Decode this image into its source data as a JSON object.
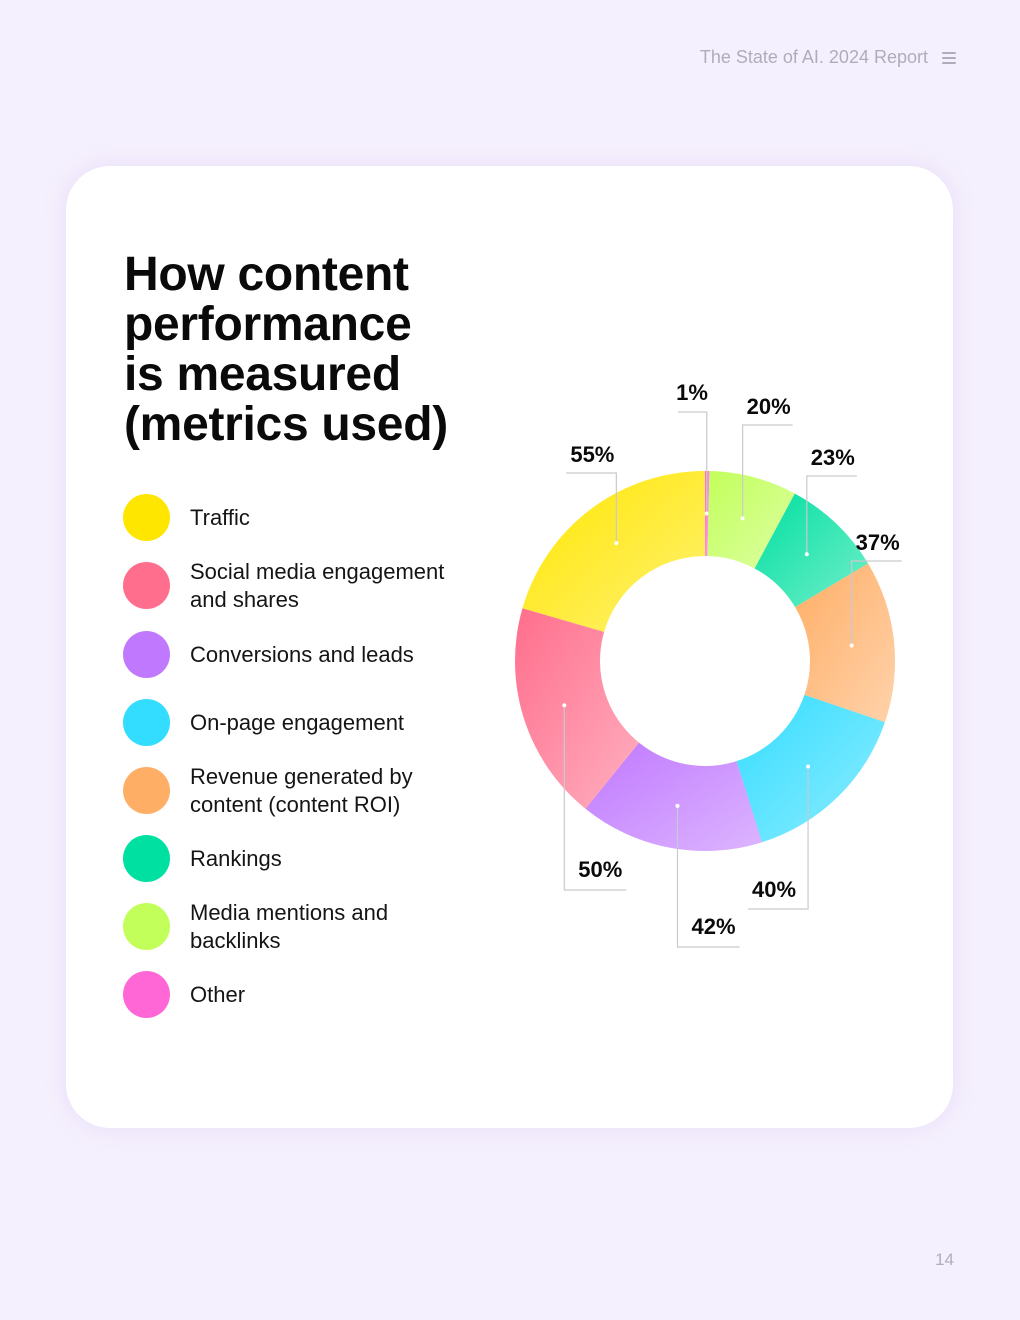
{
  "header": {
    "report_title": "The State of AI. 2024 Report"
  },
  "page_number": "14",
  "chart_data": {
    "type": "pie",
    "title": "How content performance is measured (metrics used)",
    "donut": true,
    "legend_position": "left",
    "categories": [
      "Traffic",
      "Social media engagement and shares",
      "Conversions and leads",
      "On-page engagement",
      "Revenue generated by content (content ROI)",
      "Rankings",
      "Media mentions and backlinks",
      "Other"
    ],
    "values": [
      55,
      50,
      42,
      40,
      37,
      23,
      20,
      1
    ],
    "data_labels": [
      "55%",
      "50%",
      "42%",
      "40%",
      "37%",
      "23%",
      "20%",
      "1%"
    ],
    "colors": [
      "#ffe600",
      "#ff6e8c",
      "#c078ff",
      "#33ddff",
      "#ffae66",
      "#00e0a0",
      "#c2ff5a",
      "#ff66d6"
    ]
  }
}
